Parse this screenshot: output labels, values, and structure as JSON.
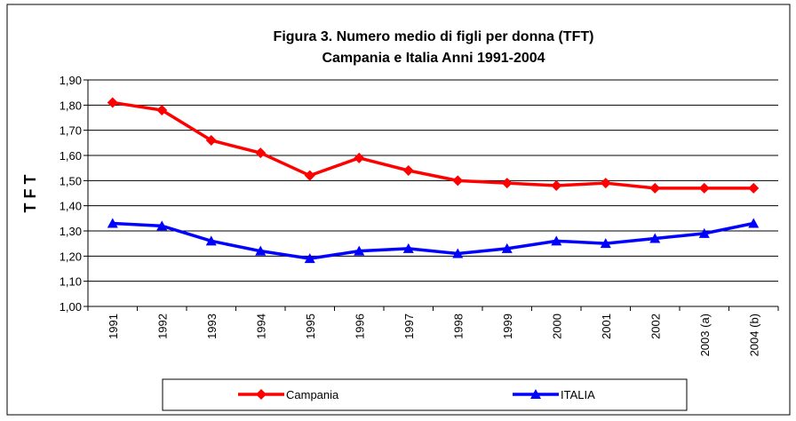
{
  "chart_data": {
    "type": "line",
    "title": "Figura 3. Numero medio di figli per donna (TFT)",
    "subtitle": "Campania e Italia  Anni 1991-2004",
    "y_label": "T F T",
    "categories": [
      "1991",
      "1992",
      "1993",
      "1994",
      "1995",
      "1996",
      "1997",
      "1998",
      "1999",
      "2000",
      "2001",
      "2002",
      "2003 (a)",
      "2004 (b)"
    ],
    "series": [
      {
        "name": "Campania",
        "color": "#ff0000",
        "marker": "diamond",
        "values": [
          1.81,
          1.78,
          1.66,
          1.61,
          1.52,
          1.59,
          1.54,
          1.5,
          1.49,
          1.48,
          1.49,
          1.47,
          1.47,
          1.47
        ]
      },
      {
        "name": "ITALIA",
        "color": "#0000ff",
        "marker": "triangle",
        "values": [
          1.33,
          1.32,
          1.26,
          1.22,
          1.19,
          1.22,
          1.23,
          1.21,
          1.23,
          1.26,
          1.25,
          1.27,
          1.29,
          1.33
        ]
      }
    ],
    "ylim": [
      1.0,
      1.9
    ],
    "yticks": [
      {
        "value": 1.0,
        "label": "1,00"
      },
      {
        "value": 1.1,
        "label": "1,10"
      },
      {
        "value": 1.2,
        "label": "1,20"
      },
      {
        "value": 1.3,
        "label": "1,30"
      },
      {
        "value": 1.4,
        "label": "1,40"
      },
      {
        "value": 1.5,
        "label": "1,50"
      },
      {
        "value": 1.6,
        "label": "1,60"
      },
      {
        "value": 1.7,
        "label": "1,70"
      },
      {
        "value": 1.8,
        "label": "1,80"
      },
      {
        "value": 1.9,
        "label": "1,90"
      }
    ],
    "grid": true,
    "legend": "bottom"
  }
}
